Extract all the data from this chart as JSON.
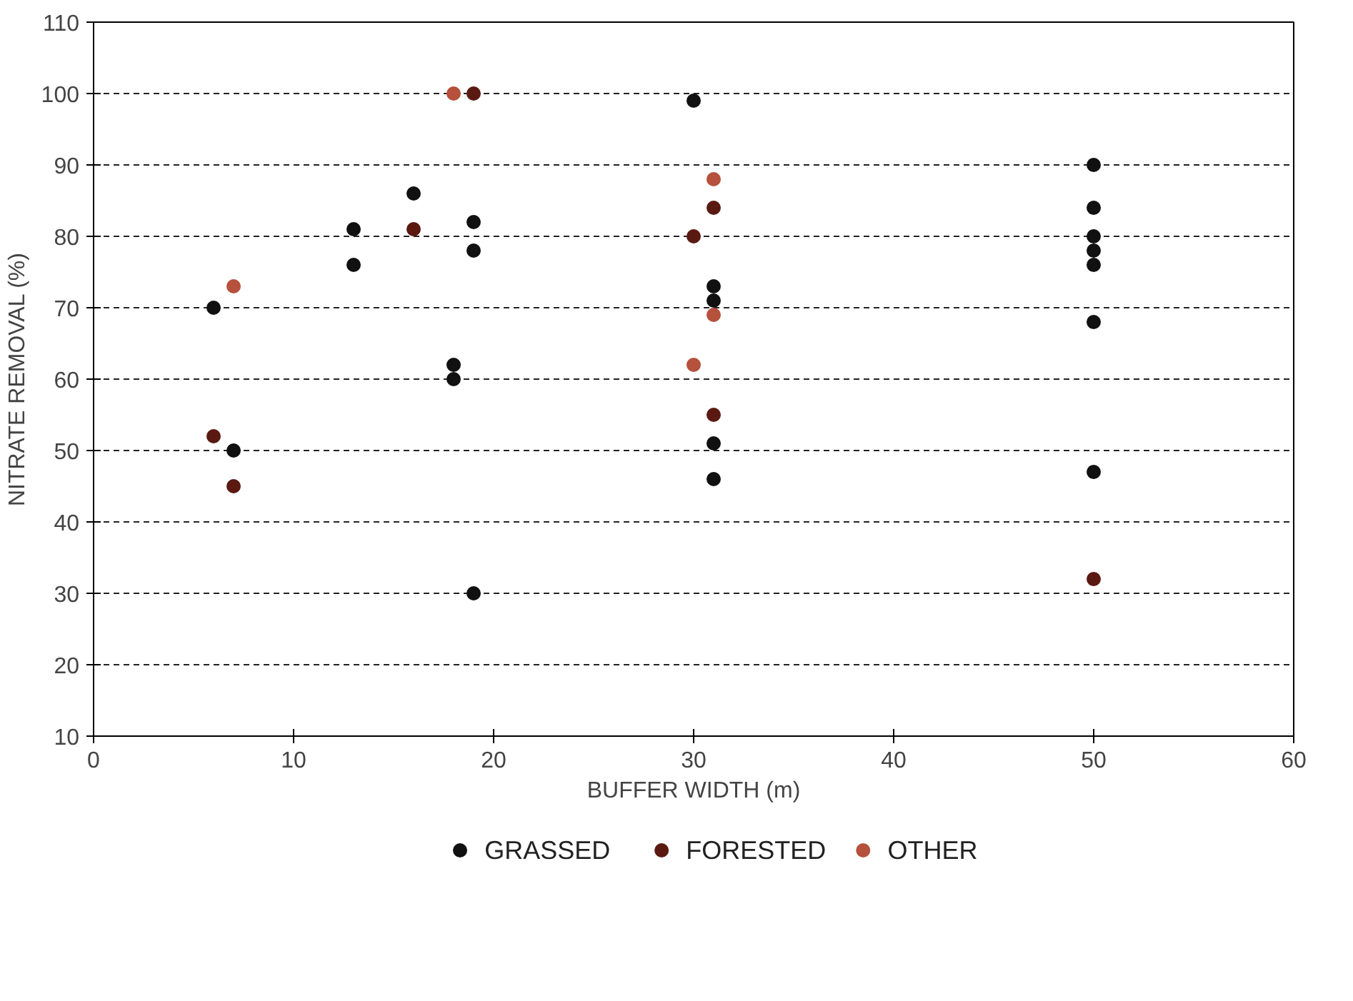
{
  "chart_data": {
    "type": "scatter",
    "xlabel": "BUFFER WIDTH (m)",
    "ylabel": "NITRATE REMOVAL (%)",
    "xlim": [
      0,
      60
    ],
    "xticks": [
      0,
      10,
      20,
      30,
      40,
      50,
      60
    ],
    "ylim": [
      10,
      110
    ],
    "yticks": [
      10,
      20,
      30,
      40,
      50,
      60,
      70,
      80,
      90,
      100,
      110
    ],
    "grid": "y",
    "legend": "bottom",
    "marker": "circle",
    "series": [
      {
        "name": "GRASSED",
        "color": "#111111",
        "x": [
          6,
          7,
          13,
          13,
          16,
          18,
          18,
          19,
          19,
          19,
          30,
          31,
          31,
          31,
          31,
          50,
          50,
          50,
          50,
          50,
          50,
          50
        ],
        "values": [
          70,
          50,
          81,
          76,
          86,
          62,
          60,
          82,
          78,
          30,
          99,
          73,
          71,
          51,
          46,
          90,
          84,
          80,
          78,
          76,
          68,
          47
        ]
      },
      {
        "name": "FORESTED",
        "color": "#5a1a12",
        "x": [
          6,
          7,
          16,
          19,
          30,
          31,
          31,
          50
        ],
        "values": [
          52,
          45,
          81,
          100,
          80,
          84,
          55,
          32
        ]
      },
      {
        "name": "OTHER",
        "color": "#b5513c",
        "x": [
          7,
          18,
          31,
          31,
          30
        ],
        "values": [
          73,
          100,
          88,
          69,
          62
        ]
      }
    ]
  }
}
